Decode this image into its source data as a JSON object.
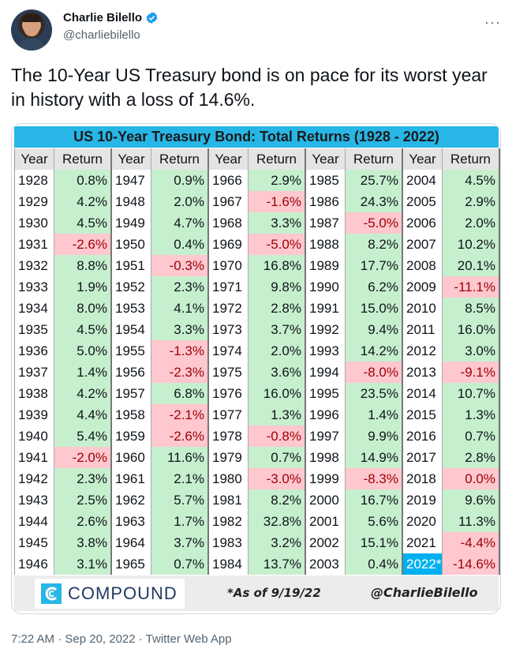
{
  "author": {
    "name": "Charlie Bilello",
    "handle": "@charliebilello",
    "more_icon": "more-horizontal-icon"
  },
  "tweet": {
    "text": "The 10-Year US Treasury bond is on pace for its worst year in history with a loss of 14.6%.",
    "timestamp": "7:22 AM · Sep 20, 2022 · Twitter Web App"
  },
  "colors": {
    "positive_fill": "#c6efce",
    "negative_fill": "#ffc7ce",
    "title_bar": "#27b6e6",
    "highlight": "#00b0f0"
  },
  "table": {
    "title": "US 10-Year Treasury Bond: Total Returns (1928 - 2022)",
    "header_year": "Year",
    "header_return": "Return",
    "columns": [
      {
        "rows": [
          {
            "year": "1928",
            "ret": "0.8%",
            "neg": false
          },
          {
            "year": "1929",
            "ret": "4.2%",
            "neg": false
          },
          {
            "year": "1930",
            "ret": "4.5%",
            "neg": false
          },
          {
            "year": "1931",
            "ret": "-2.6%",
            "neg": true
          },
          {
            "year": "1932",
            "ret": "8.8%",
            "neg": false
          },
          {
            "year": "1933",
            "ret": "1.9%",
            "neg": false
          },
          {
            "year": "1934",
            "ret": "8.0%",
            "neg": false
          },
          {
            "year": "1935",
            "ret": "4.5%",
            "neg": false
          },
          {
            "year": "1936",
            "ret": "5.0%",
            "neg": false
          },
          {
            "year": "1937",
            "ret": "1.4%",
            "neg": false
          },
          {
            "year": "1938",
            "ret": "4.2%",
            "neg": false
          },
          {
            "year": "1939",
            "ret": "4.4%",
            "neg": false
          },
          {
            "year": "1940",
            "ret": "5.4%",
            "neg": false
          },
          {
            "year": "1941",
            "ret": "-2.0%",
            "neg": true
          },
          {
            "year": "1942",
            "ret": "2.3%",
            "neg": false
          },
          {
            "year": "1943",
            "ret": "2.5%",
            "neg": false
          },
          {
            "year": "1944",
            "ret": "2.6%",
            "neg": false
          },
          {
            "year": "1945",
            "ret": "3.8%",
            "neg": false
          },
          {
            "year": "1946",
            "ret": "3.1%",
            "neg": false
          }
        ]
      },
      {
        "rows": [
          {
            "year": "1947",
            "ret": "0.9%",
            "neg": false
          },
          {
            "year": "1948",
            "ret": "2.0%",
            "neg": false
          },
          {
            "year": "1949",
            "ret": "4.7%",
            "neg": false
          },
          {
            "year": "1950",
            "ret": "0.4%",
            "neg": false
          },
          {
            "year": "1951",
            "ret": "-0.3%",
            "neg": true
          },
          {
            "year": "1952",
            "ret": "2.3%",
            "neg": false
          },
          {
            "year": "1953",
            "ret": "4.1%",
            "neg": false
          },
          {
            "year": "1954",
            "ret": "3.3%",
            "neg": false
          },
          {
            "year": "1955",
            "ret": "-1.3%",
            "neg": true
          },
          {
            "year": "1956",
            "ret": "-2.3%",
            "neg": true
          },
          {
            "year": "1957",
            "ret": "6.8%",
            "neg": false
          },
          {
            "year": "1958",
            "ret": "-2.1%",
            "neg": true
          },
          {
            "year": "1959",
            "ret": "-2.6%",
            "neg": true
          },
          {
            "year": "1960",
            "ret": "11.6%",
            "neg": false
          },
          {
            "year": "1961",
            "ret": "2.1%",
            "neg": false
          },
          {
            "year": "1962",
            "ret": "5.7%",
            "neg": false
          },
          {
            "year": "1963",
            "ret": "1.7%",
            "neg": false
          },
          {
            "year": "1964",
            "ret": "3.7%",
            "neg": false
          },
          {
            "year": "1965",
            "ret": "0.7%",
            "neg": false
          }
        ]
      },
      {
        "rows": [
          {
            "year": "1966",
            "ret": "2.9%",
            "neg": false
          },
          {
            "year": "1967",
            "ret": "-1.6%",
            "neg": true
          },
          {
            "year": "1968",
            "ret": "3.3%",
            "neg": false
          },
          {
            "year": "1969",
            "ret": "-5.0%",
            "neg": true
          },
          {
            "year": "1970",
            "ret": "16.8%",
            "neg": false
          },
          {
            "year": "1971",
            "ret": "9.8%",
            "neg": false
          },
          {
            "year": "1972",
            "ret": "2.8%",
            "neg": false
          },
          {
            "year": "1973",
            "ret": "3.7%",
            "neg": false
          },
          {
            "year": "1974",
            "ret": "2.0%",
            "neg": false
          },
          {
            "year": "1975",
            "ret": "3.6%",
            "neg": false
          },
          {
            "year": "1976",
            "ret": "16.0%",
            "neg": false
          },
          {
            "year": "1977",
            "ret": "1.3%",
            "neg": false
          },
          {
            "year": "1978",
            "ret": "-0.8%",
            "neg": true
          },
          {
            "year": "1979",
            "ret": "0.7%",
            "neg": false
          },
          {
            "year": "1980",
            "ret": "-3.0%",
            "neg": true
          },
          {
            "year": "1981",
            "ret": "8.2%",
            "neg": false
          },
          {
            "year": "1982",
            "ret": "32.8%",
            "neg": false
          },
          {
            "year": "1983",
            "ret": "3.2%",
            "neg": false
          },
          {
            "year": "1984",
            "ret": "13.7%",
            "neg": false
          }
        ]
      },
      {
        "rows": [
          {
            "year": "1985",
            "ret": "25.7%",
            "neg": false
          },
          {
            "year": "1986",
            "ret": "24.3%",
            "neg": false
          },
          {
            "year": "1987",
            "ret": "-5.0%",
            "neg": true
          },
          {
            "year": "1988",
            "ret": "8.2%",
            "neg": false
          },
          {
            "year": "1989",
            "ret": "17.7%",
            "neg": false
          },
          {
            "year": "1990",
            "ret": "6.2%",
            "neg": false
          },
          {
            "year": "1991",
            "ret": "15.0%",
            "neg": false
          },
          {
            "year": "1992",
            "ret": "9.4%",
            "neg": false
          },
          {
            "year": "1993",
            "ret": "14.2%",
            "neg": false
          },
          {
            "year": "1994",
            "ret": "-8.0%",
            "neg": true
          },
          {
            "year": "1995",
            "ret": "23.5%",
            "neg": false
          },
          {
            "year": "1996",
            "ret": "1.4%",
            "neg": false
          },
          {
            "year": "1997",
            "ret": "9.9%",
            "neg": false
          },
          {
            "year": "1998",
            "ret": "14.9%",
            "neg": false
          },
          {
            "year": "1999",
            "ret": "-8.3%",
            "neg": true
          },
          {
            "year": "2000",
            "ret": "16.7%",
            "neg": false
          },
          {
            "year": "2001",
            "ret": "5.6%",
            "neg": false
          },
          {
            "year": "2002",
            "ret": "15.1%",
            "neg": false
          },
          {
            "year": "2003",
            "ret": "0.4%",
            "neg": false
          }
        ]
      },
      {
        "rows": [
          {
            "year": "2004",
            "ret": "4.5%",
            "neg": false
          },
          {
            "year": "2005",
            "ret": "2.9%",
            "neg": false
          },
          {
            "year": "2006",
            "ret": "2.0%",
            "neg": false
          },
          {
            "year": "2007",
            "ret": "10.2%",
            "neg": false
          },
          {
            "year": "2008",
            "ret": "20.1%",
            "neg": false
          },
          {
            "year": "2009",
            "ret": "-11.1%",
            "neg": true
          },
          {
            "year": "2010",
            "ret": "8.5%",
            "neg": false
          },
          {
            "year": "2011",
            "ret": "16.0%",
            "neg": false
          },
          {
            "year": "2012",
            "ret": "3.0%",
            "neg": false
          },
          {
            "year": "2013",
            "ret": "-9.1%",
            "neg": true
          },
          {
            "year": "2014",
            "ret": "10.7%",
            "neg": false
          },
          {
            "year": "2015",
            "ret": "1.3%",
            "neg": false
          },
          {
            "year": "2016",
            "ret": "0.7%",
            "neg": false
          },
          {
            "year": "2017",
            "ret": "2.8%",
            "neg": false
          },
          {
            "year": "2018",
            "ret": "0.0%",
            "neg": true
          },
          {
            "year": "2019",
            "ret": "9.6%",
            "neg": false
          },
          {
            "year": "2020",
            "ret": "11.3%",
            "neg": false
          },
          {
            "year": "2021",
            "ret": "-4.4%",
            "neg": true
          },
          {
            "year": "2022*",
            "ret": "-14.6%",
            "neg": true,
            "highlight": true
          }
        ]
      }
    ],
    "logo_text": "COMPOUND",
    "logo_icon": "compound-logo-icon",
    "as_of": "*As of 9/19/22",
    "credit": "@CharlieBilello"
  }
}
